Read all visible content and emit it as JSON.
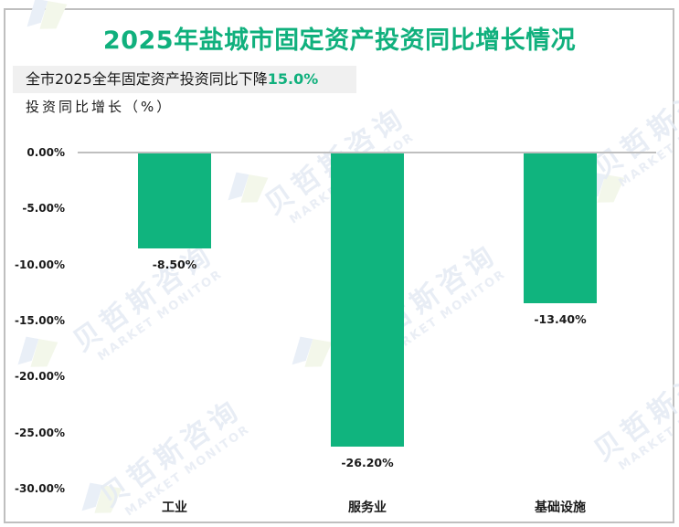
{
  "title": "2025年盐城市固定资产投资同比增长情况",
  "subtitle": {
    "prefix": "全市2025全年固定资产投资同比下降",
    "highlight": "15.0%"
  },
  "ylabel_text": "投资同比增长（%）",
  "watermark": {
    "cn": "贝哲斯咨询",
    "en": "MARKET MONITOR"
  },
  "colors": {
    "accent": "#10b07d",
    "bar": "#10b47e",
    "axis": "#bfbfbf",
    "subtitle_bg": "#f0f0f0"
  },
  "chart_data": {
    "type": "bar",
    "title": "2025年盐城市固定资产投资同比增长情况",
    "subtitle": "全市2025全年固定资产投资同比下降15.0%",
    "xlabel": "",
    "ylabel": "投资同比增长（%）",
    "categories": [
      "工业",
      "服务业",
      "基础设施"
    ],
    "values": [
      -8.5,
      -26.2,
      -13.4
    ],
    "value_labels": [
      "-8.50%",
      "-26.20%",
      "-13.40%"
    ],
    "ylim": [
      -30,
      0
    ],
    "yticks": [
      "0.00%",
      "-5.00%",
      "-10.00%",
      "-15.00%",
      "-20.00%",
      "-25.00%",
      "-30.00%"
    ],
    "grid": false,
    "legend": null
  }
}
